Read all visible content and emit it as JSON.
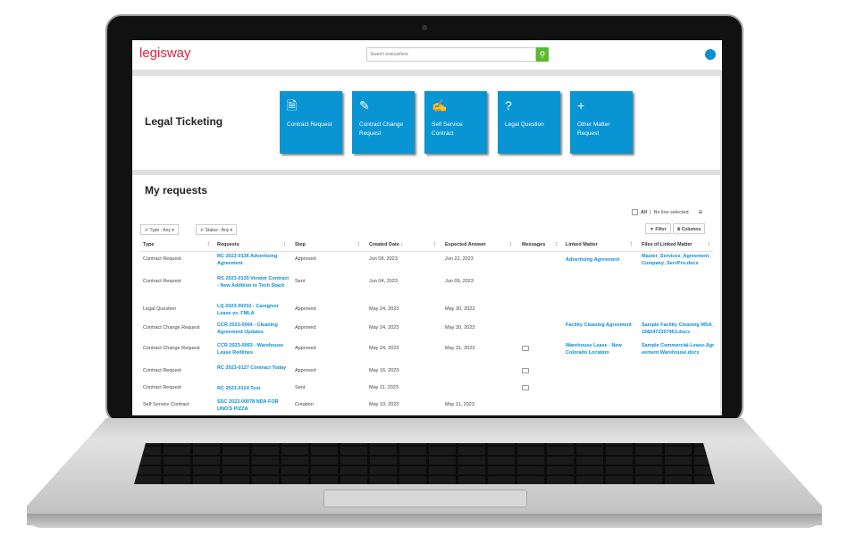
{
  "app": {
    "logo": "legisway",
    "search_placeholder": "Search everywhere"
  },
  "ticketing": {
    "title": "Legal Ticketing",
    "tiles": [
      {
        "label": "Contract Request",
        "icon": "document-gear-icon",
        "glyph": "🗎"
      },
      {
        "label": "Contract Change Request",
        "icon": "pencil-icon",
        "glyph": "✎"
      },
      {
        "label": "Self Service Contract",
        "icon": "document-pen-icon",
        "glyph": "✍"
      },
      {
        "label": "Legal Question",
        "icon": "question-circle-icon",
        "glyph": "?"
      },
      {
        "label": "Other Matter Request",
        "icon": "plus-icon",
        "glyph": "+"
      }
    ]
  },
  "requests": {
    "title": "My requests",
    "select_all": "All",
    "selection_status": "No line selected",
    "filters": [
      {
        "label": "Type : Any"
      },
      {
        "label": "Status : Any"
      }
    ],
    "filter_button": "Filter",
    "columns_button": "Columns",
    "columns": [
      "Type",
      "Requests",
      "Step",
      "Created Date ↓",
      "Expected Answer",
      "Messages",
      "Linked Matter",
      "Files of Linked Matter"
    ],
    "rows": [
      {
        "type": "Contract Request",
        "request": "RC 2023-0136 Advertising Agreement",
        "step": "Approved",
        "created": "Jun 08, 2023",
        "expected": "Jun 22, 2023",
        "message": false,
        "matter": "Advertising Agreement",
        "file": "Master_Services_Agreement_Company_ServPro.docx"
      },
      {
        "type": "Contract Request",
        "request": "RC 2023-0135 Vendor Contract - New Addition to Tech Stack",
        "step": "Sent",
        "created": "Jun 04, 2023",
        "expected": "Jun 09, 2023",
        "message": false,
        "matter": "",
        "file": ""
      },
      {
        "type": "Legal Question",
        "request": "LQ 2023-00032 - Caregiver Leave vs. FMLA",
        "step": "Approved",
        "created": "May 24, 2023",
        "expected": "May 30, 2023",
        "message": false,
        "matter": "",
        "file": ""
      },
      {
        "type": "Contract Change Request",
        "request": "CCR 2023-0004 - Cleaning Agreement Updates",
        "step": "Approved",
        "created": "May 24, 2023",
        "expected": "May 30, 2023",
        "message": false,
        "matter": "Facility Cleaning Agreement",
        "file": "Sample Facility Cleaning MSA_1682472357963.docx"
      },
      {
        "type": "Contract Change Request",
        "request": "CCR 2023-0003 - Warehouse Lease Redlines",
        "step": "Approved",
        "created": "May 24, 2023",
        "expected": "May 31, 2023",
        "message": true,
        "matter": "Warehouse Lease - New Colorado Location",
        "file": "Sample Commercial-Lease-Agreement Warehouse.docx"
      },
      {
        "type": "Contract Request",
        "request": "RC 2023-0127 Contract Today",
        "step": "Approved",
        "created": "May 16, 2023",
        "expected": "",
        "message": true,
        "matter": "",
        "file": ""
      },
      {
        "type": "Contract Request",
        "request": "RC 2023-0124 Test",
        "step": "Sent",
        "created": "May 11, 2023",
        "expected": "",
        "message": true,
        "matter": "",
        "file": ""
      },
      {
        "type": "Self Service Contract",
        "request": "SSC 2023-00078 NDA FOR UNO'S PIZZA",
        "step": "Creation",
        "created": "May 10, 2023",
        "expected": "May 11, 2023",
        "message": false,
        "matter": "",
        "file": ""
      }
    ]
  },
  "colors": {
    "brand": "#e4233a",
    "accent": "#0995d3",
    "search": "#5cb82f"
  }
}
